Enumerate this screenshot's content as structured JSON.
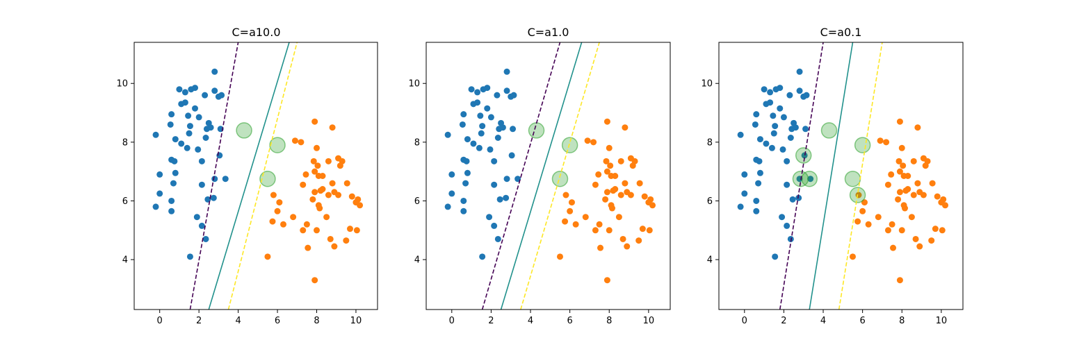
{
  "chart_data": [
    {
      "type": "scatter",
      "title": "C=a10.0",
      "xlabel": "",
      "ylabel": "",
      "xlim": [
        -1.3,
        11.1
      ],
      "ylim": [
        2.3,
        11.4
      ],
      "xticks": [
        0,
        2,
        4,
        6,
        8,
        10
      ],
      "yticks": [
        4,
        6,
        8,
        10
      ],
      "xtick_labels": [
        "0",
        "2",
        "4",
        "6",
        "8",
        "10"
      ],
      "ytick_labels": [
        "4",
        "6",
        "8",
        "10"
      ],
      "support_vectors": [
        [
          4.3,
          8.4
        ],
        [
          6.0,
          7.9
        ],
        [
          5.5,
          6.75
        ]
      ],
      "decision_lines": [
        {
          "role": "margin_lower",
          "style": "dashed",
          "color": "#440154",
          "points": [
            [
              1.55,
              2.3
            ],
            [
              4.0,
              11.4
            ]
          ]
        },
        {
          "role": "decision_boundary",
          "style": "solid",
          "color": "#21918c",
          "points": [
            [
              2.5,
              2.3
            ],
            [
              6.6,
              11.4
            ]
          ]
        },
        {
          "role": "margin_upper",
          "style": "dashed",
          "color": "#fde725",
          "points": [
            [
              3.5,
              2.3
            ],
            [
              7.0,
              11.4
            ]
          ]
        }
      ]
    },
    {
      "type": "scatter",
      "title": "C=a1.0",
      "xlabel": "",
      "ylabel": "",
      "xlim": [
        -1.3,
        11.1
      ],
      "ylim": [
        2.3,
        11.4
      ],
      "xticks": [
        0,
        2,
        4,
        6,
        8,
        10
      ],
      "yticks": [
        4,
        6,
        8,
        10
      ],
      "xtick_labels": [
        "0",
        "2",
        "4",
        "6",
        "8",
        "10"
      ],
      "ytick_labels": [
        "4",
        "6",
        "8",
        "10"
      ],
      "support_vectors": [
        [
          4.3,
          8.4
        ],
        [
          6.0,
          7.9
        ],
        [
          5.5,
          6.75
        ]
      ],
      "decision_lines": [
        {
          "role": "margin_lower",
          "style": "dashed",
          "color": "#440154",
          "points": [
            [
              1.55,
              2.3
            ],
            [
              5.5,
              11.4
            ]
          ]
        },
        {
          "role": "decision_boundary",
          "style": "solid",
          "color": "#21918c",
          "points": [
            [
              2.5,
              2.3
            ],
            [
              6.6,
              11.4
            ]
          ]
        },
        {
          "role": "margin_upper",
          "style": "dashed",
          "color": "#fde725",
          "points": [
            [
              3.5,
              2.3
            ],
            [
              7.5,
              11.4
            ]
          ]
        }
      ]
    },
    {
      "type": "scatter",
      "title": "C=a0.1",
      "xlabel": "",
      "ylabel": "",
      "xlim": [
        -1.3,
        11.1
      ],
      "ylim": [
        2.3,
        11.4
      ],
      "xticks": [
        0,
        2,
        4,
        6,
        8,
        10
      ],
      "yticks": [
        4,
        6,
        8,
        10
      ],
      "xtick_labels": [
        "0",
        "2",
        "4",
        "6",
        "8",
        "10"
      ],
      "ytick_labels": [
        "4",
        "6",
        "8",
        "10"
      ],
      "support_vectors": [
        [
          4.3,
          8.4
        ],
        [
          3.0,
          7.55
        ],
        [
          2.85,
          6.75
        ],
        [
          3.3,
          6.75
        ],
        [
          6.0,
          7.9
        ],
        [
          5.5,
          6.75
        ],
        [
          5.75,
          6.2
        ]
      ],
      "decision_lines": [
        {
          "role": "margin_lower",
          "style": "dashed",
          "color": "#440154",
          "points": [
            [
              1.8,
              2.3
            ],
            [
              4.0,
              11.4
            ]
          ]
        },
        {
          "role": "decision_boundary",
          "style": "solid",
          "color": "#21918c",
          "points": [
            [
              3.3,
              2.3
            ],
            [
              5.5,
              11.4
            ]
          ]
        },
        {
          "role": "margin_upper",
          "style": "dashed",
          "color": "#fde725",
          "points": [
            [
              4.8,
              2.3
            ],
            [
              7.0,
              11.4
            ]
          ]
        }
      ]
    }
  ],
  "points_class0": [
    [
      1.0,
      9.8
    ],
    [
      1.3,
      9.7
    ],
    [
      1.6,
      9.8
    ],
    [
      1.8,
      9.85
    ],
    [
      1.1,
      9.3
    ],
    [
      1.3,
      9.35
    ],
    [
      2.8,
      10.4
    ],
    [
      2.8,
      9.75
    ],
    [
      2.3,
      9.6
    ],
    [
      3.0,
      9.55
    ],
    [
      3.15,
      9.6
    ],
    [
      0.6,
      8.95
    ],
    [
      0.55,
      8.6
    ],
    [
      1.8,
      9.15
    ],
    [
      1.45,
      8.9
    ],
    [
      2.0,
      8.85
    ],
    [
      2.5,
      8.65
    ],
    [
      2.4,
      8.45
    ],
    [
      2.6,
      8.5
    ],
    [
      3.1,
      8.45
    ],
    [
      -0.2,
      8.25
    ],
    [
      0.8,
      8.1
    ],
    [
      1.1,
      7.95
    ],
    [
      1.4,
      7.8
    ],
    [
      1.5,
      8.3
    ],
    [
      1.55,
      8.55
    ],
    [
      1.95,
      7.75
    ],
    [
      2.35,
      8.15
    ],
    [
      3.05,
      7.55
    ],
    [
      2.15,
      7.35
    ],
    [
      0.6,
      7.4
    ],
    [
      0.75,
      7.35
    ],
    [
      0.0,
      6.9
    ],
    [
      0.8,
      6.95
    ],
    [
      0.0,
      6.25
    ],
    [
      0.7,
      6.6
    ],
    [
      2.8,
      6.75
    ],
    [
      3.35,
      6.75
    ],
    [
      2.15,
      6.55
    ],
    [
      2.45,
      6.05
    ],
    [
      2.75,
      6.1
    ],
    [
      0.6,
      6.0
    ],
    [
      0.6,
      5.65
    ],
    [
      -0.2,
      5.8
    ],
    [
      1.9,
      5.45
    ],
    [
      2.15,
      5.15
    ],
    [
      2.35,
      4.7
    ],
    [
      1.55,
      4.1
    ]
  ],
  "points_class1": [
    [
      7.9,
      8.7
    ],
    [
      8.8,
      8.5
    ],
    [
      6.9,
      8.05
    ],
    [
      7.2,
      8.0
    ],
    [
      8.0,
      7.8
    ],
    [
      9.1,
      7.45
    ],
    [
      9.3,
      7.35
    ],
    [
      9.2,
      7.2
    ],
    [
      7.85,
      7.35
    ],
    [
      8.05,
      7.2
    ],
    [
      8.6,
      7.35
    ],
    [
      7.9,
      7.0
    ],
    [
      8.1,
      6.85
    ],
    [
      8.3,
      6.85
    ],
    [
      7.45,
      6.9
    ],
    [
      9.55,
      6.6
    ],
    [
      8.8,
      6.6
    ],
    [
      8.3,
      6.4
    ],
    [
      8.2,
      6.35
    ],
    [
      7.3,
      6.55
    ],
    [
      8.6,
      6.2
    ],
    [
      8.9,
      6.3
    ],
    [
      9.1,
      6.2
    ],
    [
      7.9,
      6.3
    ],
    [
      5.8,
      6.2
    ],
    [
      6.1,
      5.95
    ],
    [
      6.0,
      5.65
    ],
    [
      7.8,
      6.05
    ],
    [
      8.1,
      5.85
    ],
    [
      8.15,
      5.75
    ],
    [
      9.8,
      6.15
    ],
    [
      10.1,
      6.05
    ],
    [
      10.2,
      5.85
    ],
    [
      10.0,
      5.95
    ],
    [
      6.8,
      5.45
    ],
    [
      8.5,
      5.45
    ],
    [
      5.75,
      5.3
    ],
    [
      6.3,
      5.2
    ],
    [
      7.5,
      5.2
    ],
    [
      7.3,
      5.0
    ],
    [
      8.0,
      5.0
    ],
    [
      9.7,
      5.05
    ],
    [
      10.05,
      5.0
    ],
    [
      8.7,
      4.7
    ],
    [
      9.5,
      4.65
    ],
    [
      7.55,
      4.4
    ],
    [
      8.9,
      4.45
    ],
    [
      5.5,
      4.1
    ],
    [
      7.9,
      3.3
    ]
  ]
}
